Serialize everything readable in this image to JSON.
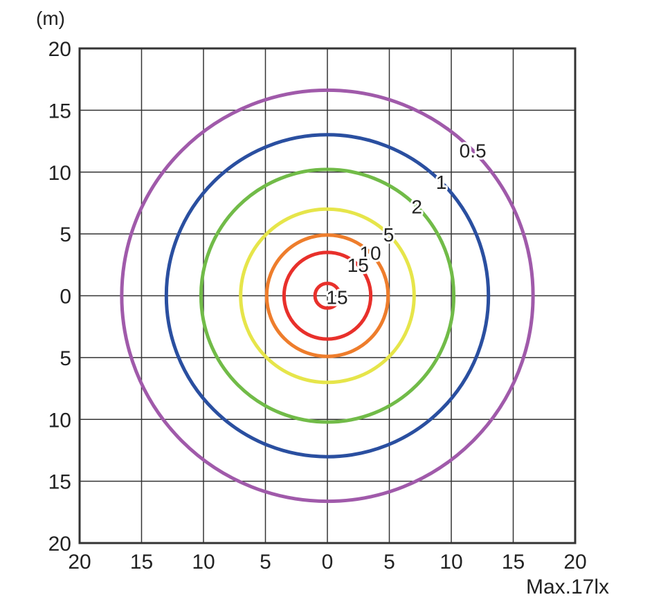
{
  "chart_data": {
    "type": "contour",
    "unit_label": "(m)",
    "note": "Max.17lx",
    "xlim": [
      -20,
      20
    ],
    "ylim": [
      -20,
      20
    ],
    "grid": true,
    "grid_step": 5,
    "x_ticks": [
      -20,
      -15,
      -10,
      -5,
      0,
      5,
      10,
      15,
      20
    ],
    "x_tick_labels": [
      "20",
      "15",
      "10",
      "5",
      "0",
      "5",
      "10",
      "15",
      "20"
    ],
    "y_ticks": [
      20,
      15,
      10,
      5,
      0,
      -5,
      -10,
      -15,
      -20
    ],
    "y_tick_labels": [
      "20",
      "15",
      "10",
      "5",
      "0",
      "5",
      "10",
      "15",
      "20"
    ],
    "center": [
      0,
      0
    ],
    "contours": [
      {
        "lux": 0.5,
        "label": "0.5",
        "radius": 16.6,
        "color": "#a05aaa"
      },
      {
        "lux": 1,
        "label": "1",
        "radius": 13.0,
        "color": "#2a4fa0"
      },
      {
        "lux": 2,
        "label": "2",
        "radius": 10.2,
        "color": "#71bb48"
      },
      {
        "lux": 5,
        "label": "5",
        "radius": 7.0,
        "color": "#e6e54a"
      },
      {
        "lux": 10,
        "label": "10",
        "radius": 4.9,
        "color": "#ee7d2c"
      },
      {
        "lux": 15,
        "label": "15",
        "radius": 3.5,
        "color": "#e8302b"
      },
      {
        "lux": 15,
        "label": "15",
        "radius": 1.0,
        "color": "#e8302b"
      }
    ]
  }
}
